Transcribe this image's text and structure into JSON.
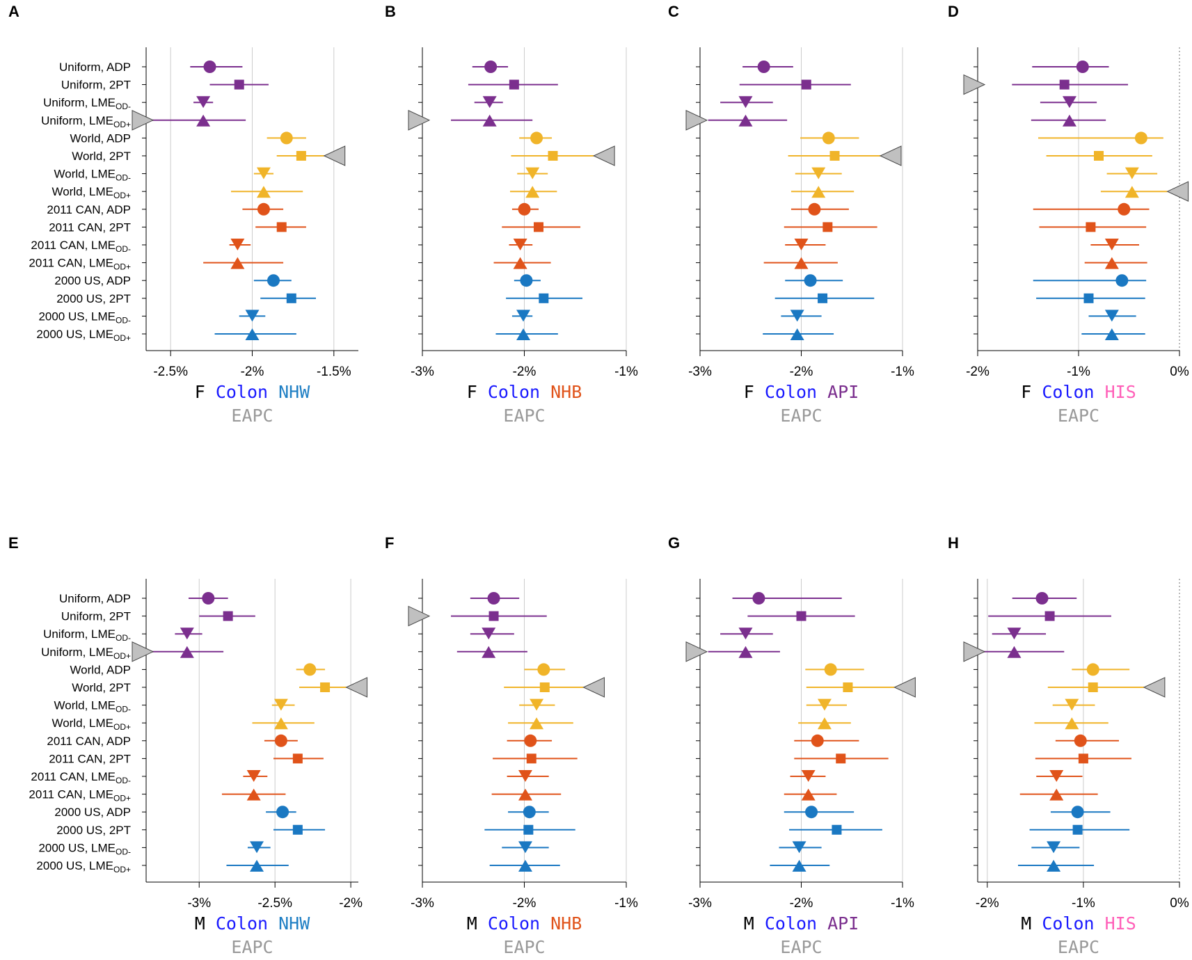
{
  "rows": [
    {
      "label": "Uniform, ADP",
      "main": "Uniform, ADP",
      "sub": "",
      "group": "uniform",
      "shape": "circle"
    },
    {
      "label": "Uniform, 2PT",
      "main": "Uniform, 2PT",
      "sub": "",
      "group": "uniform",
      "shape": "square"
    },
    {
      "label": "Uniform,  LMEOD-",
      "main": "Uniform,  LME",
      "sub": "OD-",
      "group": "uniform",
      "shape": "tri-down"
    },
    {
      "label": "Uniform,  LMEOD+",
      "main": "Uniform,  LME",
      "sub": "OD+",
      "group": "uniform",
      "shape": "tri-up"
    },
    {
      "label": "World, ADP",
      "main": "World, ADP",
      "sub": "",
      "group": "world",
      "shape": "circle"
    },
    {
      "label": "World, 2PT",
      "main": "World, 2PT",
      "sub": "",
      "group": "world",
      "shape": "square"
    },
    {
      "label": "World,  LMEOD-",
      "main": "World,  LME",
      "sub": "OD-",
      "group": "world",
      "shape": "tri-down"
    },
    {
      "label": "World,  LMEOD+",
      "main": "World,  LME",
      "sub": "OD+",
      "group": "world",
      "shape": "tri-up"
    },
    {
      "label": "2011 CAN, ADP",
      "main": "2011 CAN, ADP",
      "sub": "",
      "group": "can",
      "shape": "circle"
    },
    {
      "label": "2011 CAN, 2PT",
      "main": "2011 CAN, 2PT",
      "sub": "",
      "group": "can",
      "shape": "square"
    },
    {
      "label": "2011 CAN,  LMEOD-",
      "main": "2011 CAN,  LME",
      "sub": "OD-",
      "group": "can",
      "shape": "tri-down"
    },
    {
      "label": "2011 CAN,  LMEOD+",
      "main": "2011 CAN,  LME",
      "sub": "OD+",
      "group": "can",
      "shape": "tri-up"
    },
    {
      "label": "2000 US, ADP",
      "main": "2000 US, ADP",
      "sub": "",
      "group": "us",
      "shape": "circle"
    },
    {
      "label": "2000 US, 2PT",
      "main": "2000 US, 2PT",
      "sub": "",
      "group": "us",
      "shape": "square"
    },
    {
      "label": "2000  US,  LMEOD-",
      "main": "2000  US,  LME",
      "sub": "OD-",
      "group": "us",
      "shape": "tri-down"
    },
    {
      "label": "2000  US,  LMEOD+",
      "main": "2000  US,  LME",
      "sub": "OD+",
      "group": "us",
      "shape": "tri-up"
    }
  ],
  "colors": {
    "uniform": "#7b2f8e",
    "world": "#f0b429",
    "can": "#e0531a",
    "us": "#1a78c2",
    "gridline": "#cccccc",
    "overflow_marker": "#c0c0c0",
    "zero_line": "#999999",
    "sex_text": "#000000",
    "cancer_text": "#1a1aff",
    "eapc_text": "#999999"
  },
  "chart_data": [
    {
      "type": "forest",
      "letter": "A",
      "sex": "F",
      "cancer": "Colon",
      "race": "NHW",
      "race_color": "#1f7fc4",
      "xlabel": "EAPC",
      "xlim": [
        -2.65,
        -1.35
      ],
      "ticks": [
        -2.5,
        -2.0,
        -1.5
      ],
      "tick_labels": [
        "-2.5%",
        "-2%",
        "-1.5%"
      ],
      "points": [
        {
          "est": -2.26,
          "lo": -2.38,
          "hi": -2.06
        },
        {
          "est": -2.08,
          "lo": -2.26,
          "hi": -1.9
        },
        {
          "est": -2.3,
          "lo": -2.36,
          "hi": -2.24
        },
        {
          "est": -2.3,
          "lo": -2.62,
          "hi": -2.04
        },
        {
          "est": -1.79,
          "lo": -1.91,
          "hi": -1.67
        },
        {
          "est": -1.7,
          "lo": -1.85,
          "hi": -1.56
        },
        {
          "est": -1.93,
          "lo": -1.99,
          "hi": -1.87
        },
        {
          "est": -1.93,
          "lo": -2.13,
          "hi": -1.69
        },
        {
          "est": -1.93,
          "lo": -2.06,
          "hi": -1.81
        },
        {
          "est": -1.82,
          "lo": -1.98,
          "hi": -1.67
        },
        {
          "est": -2.09,
          "lo": -2.14,
          "hi": -2.01
        },
        {
          "est": -2.09,
          "lo": -2.3,
          "hi": -1.81
        },
        {
          "est": -1.87,
          "lo": -1.99,
          "hi": -1.76
        },
        {
          "est": -1.76,
          "lo": -1.95,
          "hi": -1.61
        },
        {
          "est": -2.0,
          "lo": -2.08,
          "hi": -1.92
        },
        {
          "est": -2.0,
          "lo": -2.23,
          "hi": -1.73
        }
      ],
      "overflow": [
        {
          "row": 3,
          "dir": "left"
        },
        {
          "row": 5,
          "dir": "right"
        }
      ]
    },
    {
      "type": "forest",
      "letter": "B",
      "sex": "F",
      "cancer": "Colon",
      "race": "NHB",
      "race_color": "#e0531a",
      "xlabel": "EAPC",
      "xlim": [
        -3.0,
        -1.0
      ],
      "ticks": [
        -3.0,
        -2.0,
        -1.0
      ],
      "tick_labels": [
        "-3%",
        "-2%",
        "-1%"
      ],
      "points": [
        {
          "est": -2.33,
          "lo": -2.51,
          "hi": -2.16
        },
        {
          "est": -2.1,
          "lo": -2.55,
          "hi": -1.67
        },
        {
          "est": -2.34,
          "lo": -2.49,
          "hi": -2.21
        },
        {
          "est": -2.34,
          "lo": -2.72,
          "hi": -1.92
        },
        {
          "est": -1.88,
          "lo": -2.05,
          "hi": -1.73
        },
        {
          "est": -1.72,
          "lo": -2.13,
          "hi": -1.32
        },
        {
          "est": -1.92,
          "lo": -2.07,
          "hi": -1.77
        },
        {
          "est": -1.92,
          "lo": -2.14,
          "hi": -1.68
        },
        {
          "est": -2.0,
          "lo": -2.12,
          "hi": -1.86
        },
        {
          "est": -1.86,
          "lo": -2.22,
          "hi": -1.45
        },
        {
          "est": -2.04,
          "lo": -2.15,
          "hi": -1.92
        },
        {
          "est": -2.04,
          "lo": -2.3,
          "hi": -1.74
        },
        {
          "est": -1.98,
          "lo": -2.1,
          "hi": -1.84
        },
        {
          "est": -1.81,
          "lo": -2.18,
          "hi": -1.43
        },
        {
          "est": -2.01,
          "lo": -2.12,
          "hi": -1.92
        },
        {
          "est": -2.01,
          "lo": -2.28,
          "hi": -1.67
        }
      ],
      "overflow": [
        {
          "row": 3,
          "dir": "left"
        },
        {
          "row": 5,
          "dir": "right"
        }
      ]
    },
    {
      "type": "forest",
      "letter": "C",
      "sex": "F",
      "cancer": "Colon",
      "race": "API",
      "race_color": "#7b2f8e",
      "xlabel": "EAPC",
      "xlim": [
        -3.0,
        -1.0
      ],
      "ticks": [
        -3.0,
        -2.0,
        -1.0
      ],
      "tick_labels": [
        "-3%",
        "-2%",
        "-1%"
      ],
      "points": [
        {
          "est": -2.37,
          "lo": -2.58,
          "hi": -2.08
        },
        {
          "est": -1.95,
          "lo": -2.61,
          "hi": -1.51
        },
        {
          "est": -2.55,
          "lo": -2.8,
          "hi": -2.28
        },
        {
          "est": -2.55,
          "lo": -2.92,
          "hi": -2.14
        },
        {
          "est": -1.73,
          "lo": -2.01,
          "hi": -1.43
        },
        {
          "est": -1.67,
          "lo": -2.13,
          "hi": -1.22
        },
        {
          "est": -1.83,
          "lo": -2.06,
          "hi": -1.6
        },
        {
          "est": -1.83,
          "lo": -2.1,
          "hi": -1.48
        },
        {
          "est": -1.87,
          "lo": -2.1,
          "hi": -1.53
        },
        {
          "est": -1.74,
          "lo": -2.17,
          "hi": -1.25
        },
        {
          "est": -2.0,
          "lo": -2.16,
          "hi": -1.76
        },
        {
          "est": -2.0,
          "lo": -2.37,
          "hi": -1.64
        },
        {
          "est": -1.91,
          "lo": -2.16,
          "hi": -1.59
        },
        {
          "est": -1.79,
          "lo": -2.26,
          "hi": -1.28
        },
        {
          "est": -2.04,
          "lo": -2.2,
          "hi": -1.8
        },
        {
          "est": -2.04,
          "lo": -2.38,
          "hi": -1.68
        }
      ],
      "overflow": [
        {
          "row": 3,
          "dir": "left"
        },
        {
          "row": 5,
          "dir": "right"
        }
      ]
    },
    {
      "type": "forest",
      "letter": "D",
      "sex": "F",
      "cancer": "Colon",
      "race": "HIS",
      "race_color": "#ff5fb8",
      "xlabel": "EAPC",
      "xlim": [
        -2.0,
        0.0
      ],
      "ticks": [
        -2.0,
        -1.0,
        0.0
      ],
      "tick_labels": [
        "-2%",
        "-1%",
        "0%"
      ],
      "points": [
        {
          "est": -0.96,
          "lo": -1.46,
          "hi": -0.7
        },
        {
          "est": -1.14,
          "lo": -1.66,
          "hi": -0.51
        },
        {
          "est": -1.09,
          "lo": -1.38,
          "hi": -0.82
        },
        {
          "est": -1.09,
          "lo": -1.47,
          "hi": -0.73
        },
        {
          "est": -0.38,
          "lo": -1.4,
          "hi": -0.16
        },
        {
          "est": -0.8,
          "lo": -1.32,
          "hi": -0.27
        },
        {
          "est": -0.47,
          "lo": -0.72,
          "hi": -0.22
        },
        {
          "est": -0.47,
          "lo": -0.78,
          "hi": -0.12
        },
        {
          "est": -0.55,
          "lo": -1.45,
          "hi": -0.3
        },
        {
          "est": -0.88,
          "lo": -1.39,
          "hi": -0.33
        },
        {
          "est": -0.67,
          "lo": -0.88,
          "hi": -0.4
        },
        {
          "est": -0.67,
          "lo": -0.94,
          "hi": -0.32
        },
        {
          "est": -0.57,
          "lo": -1.45,
          "hi": -0.33
        },
        {
          "est": -0.9,
          "lo": -1.42,
          "hi": -0.34
        },
        {
          "est": -0.67,
          "lo": -0.9,
          "hi": -0.43
        },
        {
          "est": -0.67,
          "lo": -0.97,
          "hi": -0.34
        }
      ],
      "overflow": [
        {
          "row": 1,
          "dir": "left"
        },
        {
          "row": 7,
          "dir": "right"
        }
      ]
    },
    {
      "type": "forest",
      "letter": "E",
      "sex": "M",
      "cancer": "Colon",
      "race": "NHW",
      "race_color": "#1f7fc4",
      "xlabel": "EAPC",
      "xlim": [
        -3.35,
        -1.95
      ],
      "ticks": [
        -3.0,
        -2.5,
        -2.0
      ],
      "tick_labels": [
        "-3%",
        "-2.5%",
        "-2%"
      ],
      "points": [
        {
          "est": -2.94,
          "lo": -3.07,
          "hi": -2.81
        },
        {
          "est": -2.81,
          "lo": -3.0,
          "hi": -2.63
        },
        {
          "est": -3.08,
          "lo": -3.16,
          "hi": -2.98
        },
        {
          "est": -3.08,
          "lo": -3.34,
          "hi": -2.84
        },
        {
          "est": -2.27,
          "lo": -2.36,
          "hi": -2.17
        },
        {
          "est": -2.17,
          "lo": -2.34,
          "hi": -2.03
        },
        {
          "est": -2.46,
          "lo": -2.52,
          "hi": -2.37
        },
        {
          "est": -2.46,
          "lo": -2.65,
          "hi": -2.24
        },
        {
          "est": -2.46,
          "lo": -2.57,
          "hi": -2.35
        },
        {
          "est": -2.35,
          "lo": -2.51,
          "hi": -2.18
        },
        {
          "est": -2.64,
          "lo": -2.71,
          "hi": -2.55
        },
        {
          "est": -2.64,
          "lo": -2.85,
          "hi": -2.43
        },
        {
          "est": -2.45,
          "lo": -2.56,
          "hi": -2.36
        },
        {
          "est": -2.35,
          "lo": -2.51,
          "hi": -2.17
        },
        {
          "est": -2.62,
          "lo": -2.68,
          "hi": -2.53
        },
        {
          "est": -2.62,
          "lo": -2.82,
          "hi": -2.41
        }
      ],
      "overflow": [
        {
          "row": 3,
          "dir": "left"
        },
        {
          "row": 5,
          "dir": "right"
        }
      ]
    },
    {
      "type": "forest",
      "letter": "F",
      "sex": "M",
      "cancer": "Colon",
      "race": "NHB",
      "race_color": "#e0531a",
      "xlabel": "EAPC",
      "xlim": [
        -3.0,
        -1.0
      ],
      "ticks": [
        -3.0,
        -2.0,
        -1.0
      ],
      "tick_labels": [
        "-3%",
        "-2%",
        "-1%"
      ],
      "points": [
        {
          "est": -2.3,
          "lo": -2.53,
          "hi": -2.05
        },
        {
          "est": -2.3,
          "lo": -2.72,
          "hi": -1.78
        },
        {
          "est": -2.35,
          "lo": -2.53,
          "hi": -2.1
        },
        {
          "est": -2.35,
          "lo": -2.66,
          "hi": -1.97
        },
        {
          "est": -1.81,
          "lo": -2.0,
          "hi": -1.6
        },
        {
          "est": -1.8,
          "lo": -2.2,
          "hi": -1.42
        },
        {
          "est": -1.88,
          "lo": -2.05,
          "hi": -1.7
        },
        {
          "est": -1.88,
          "lo": -2.16,
          "hi": -1.52
        },
        {
          "est": -1.94,
          "lo": -2.17,
          "hi": -1.73
        },
        {
          "est": -1.93,
          "lo": -2.31,
          "hi": -1.48
        },
        {
          "est": -1.99,
          "lo": -2.17,
          "hi": -1.76
        },
        {
          "est": -1.99,
          "lo": -2.32,
          "hi": -1.64
        },
        {
          "est": -1.95,
          "lo": -2.16,
          "hi": -1.76
        },
        {
          "est": -1.96,
          "lo": -2.39,
          "hi": -1.5
        },
        {
          "est": -1.99,
          "lo": -2.22,
          "hi": -1.76
        },
        {
          "est": -1.99,
          "lo": -2.34,
          "hi": -1.65
        }
      ],
      "overflow": [
        {
          "row": 1,
          "dir": "left"
        },
        {
          "row": 5,
          "dir": "right"
        }
      ]
    },
    {
      "type": "forest",
      "letter": "G",
      "sex": "M",
      "cancer": "Colon",
      "race": "API",
      "race_color": "#7b2f8e",
      "xlabel": "EAPC",
      "xlim": [
        -3.0,
        -1.0
      ],
      "ticks": [
        -3.0,
        -2.0,
        -1.0
      ],
      "tick_labels": [
        "-3%",
        "-2%",
        "-1%"
      ],
      "points": [
        {
          "est": -2.42,
          "lo": -2.68,
          "hi": -1.6
        },
        {
          "est": -2.0,
          "lo": -2.53,
          "hi": -1.47
        },
        {
          "est": -2.55,
          "lo": -2.8,
          "hi": -2.28
        },
        {
          "est": -2.55,
          "lo": -2.92,
          "hi": -2.21
        },
        {
          "est": -1.71,
          "lo": -1.96,
          "hi": -1.38
        },
        {
          "est": -1.54,
          "lo": -1.95,
          "hi": -1.08
        },
        {
          "est": -1.77,
          "lo": -1.95,
          "hi": -1.55
        },
        {
          "est": -1.77,
          "lo": -2.03,
          "hi": -1.51
        },
        {
          "est": -1.84,
          "lo": -2.07,
          "hi": -1.43
        },
        {
          "est": -1.61,
          "lo": -2.07,
          "hi": -1.14
        },
        {
          "est": -1.93,
          "lo": -2.11,
          "hi": -1.76
        },
        {
          "est": -1.93,
          "lo": -2.17,
          "hi": -1.65
        },
        {
          "est": -1.9,
          "lo": -2.17,
          "hi": -1.48
        },
        {
          "est": -1.65,
          "lo": -2.12,
          "hi": -1.2
        },
        {
          "est": -2.02,
          "lo": -2.22,
          "hi": -1.8
        },
        {
          "est": -2.02,
          "lo": -2.31,
          "hi": -1.72
        }
      ],
      "overflow": [
        {
          "row": 3,
          "dir": "left"
        },
        {
          "row": 5,
          "dir": "right"
        }
      ]
    },
    {
      "type": "forest",
      "letter": "H",
      "sex": "M",
      "cancer": "Colon",
      "race": "HIS",
      "race_color": "#ff5fb8",
      "xlabel": "EAPC",
      "xlim": [
        -2.1,
        0.0
      ],
      "ticks": [
        -2.0,
        -1.0,
        0.0
      ],
      "tick_labels": [
        "-2%",
        "-1%",
        "0%"
      ],
      "points": [
        {
          "est": -1.43,
          "lo": -1.74,
          "hi": -1.07
        },
        {
          "est": -1.35,
          "lo": -1.99,
          "hi": -0.71
        },
        {
          "est": -1.72,
          "lo": -1.95,
          "hi": -1.39
        },
        {
          "est": -1.72,
          "lo": -2.06,
          "hi": -1.2
        },
        {
          "est": -0.9,
          "lo": -1.12,
          "hi": -0.52
        },
        {
          "est": -0.9,
          "lo": -1.37,
          "hi": -0.37
        },
        {
          "est": -1.12,
          "lo": -1.32,
          "hi": -0.88
        },
        {
          "est": -1.12,
          "lo": -1.51,
          "hi": -0.74
        },
        {
          "est": -1.03,
          "lo": -1.29,
          "hi": -0.63
        },
        {
          "est": -1.0,
          "lo": -1.5,
          "hi": -0.5
        },
        {
          "est": -1.28,
          "lo": -1.49,
          "hi": -1.01
        },
        {
          "est": -1.28,
          "lo": -1.66,
          "hi": -0.85
        },
        {
          "est": -1.06,
          "lo": -1.34,
          "hi": -0.72
        },
        {
          "est": -1.06,
          "lo": -1.56,
          "hi": -0.52
        },
        {
          "est": -1.31,
          "lo": -1.54,
          "hi": -1.04
        },
        {
          "est": -1.31,
          "lo": -1.68,
          "hi": -0.89
        }
      ],
      "overflow": [
        {
          "row": 3,
          "dir": "left"
        },
        {
          "row": 5,
          "dir": "right"
        }
      ]
    }
  ]
}
